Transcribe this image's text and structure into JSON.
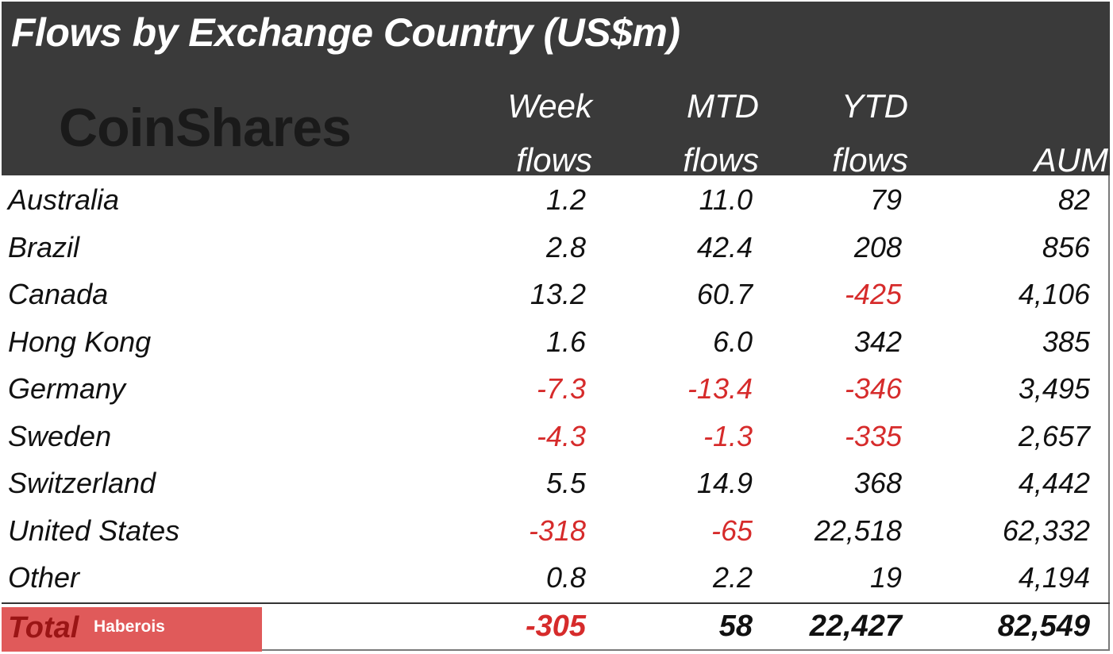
{
  "title": "Flows by Exchange Country (US$m)",
  "brand": "CoinShares",
  "watermark": "Haberois",
  "columns": [
    {
      "line1": "Week",
      "line2": "flows"
    },
    {
      "line1": "MTD",
      "line2": "flows"
    },
    {
      "line1": "YTD",
      "line2": "flows"
    },
    {
      "line1": "",
      "line2": "AUM"
    }
  ],
  "colors": {
    "header_bg": "#3a3a3a",
    "negative": "#d62b2b",
    "total_highlight": "#e05a5a"
  },
  "chart_data": {
    "type": "table",
    "title": "Flows by Exchange Country (US$m)",
    "headers": [
      "",
      "Week flows",
      "MTD flows",
      "YTD flows",
      "AUM"
    ],
    "rows": [
      {
        "country": "Australia",
        "week": "1.2",
        "mtd": "11.0",
        "ytd": "79",
        "aum": "82"
      },
      {
        "country": "Brazil",
        "week": "2.8",
        "mtd": "42.4",
        "ytd": "208",
        "aum": "856"
      },
      {
        "country": "Canada",
        "week": "13.2",
        "mtd": "60.7",
        "ytd": "-425",
        "aum": "4,106"
      },
      {
        "country": "Hong Kong",
        "week": "1.6",
        "mtd": "6.0",
        "ytd": "342",
        "aum": "385"
      },
      {
        "country": "Germany",
        "week": "-7.3",
        "mtd": "-13.4",
        "ytd": "-346",
        "aum": "3,495"
      },
      {
        "country": "Sweden",
        "week": "-4.3",
        "mtd": "-1.3",
        "ytd": "-335",
        "aum": "2,657"
      },
      {
        "country": "Switzerland",
        "week": "5.5",
        "mtd": "14.9",
        "ytd": "368",
        "aum": "4,442"
      },
      {
        "country": "United States",
        "week": "-318",
        "mtd": "-65",
        "ytd": "22,518",
        "aum": "62,332"
      },
      {
        "country": "Other",
        "week": "0.8",
        "mtd": "2.2",
        "ytd": "19",
        "aum": "4,194"
      }
    ],
    "total": {
      "label": "Total",
      "week": "-305",
      "mtd": "58",
      "ytd": "22,427",
      "aum": "82,549"
    }
  }
}
